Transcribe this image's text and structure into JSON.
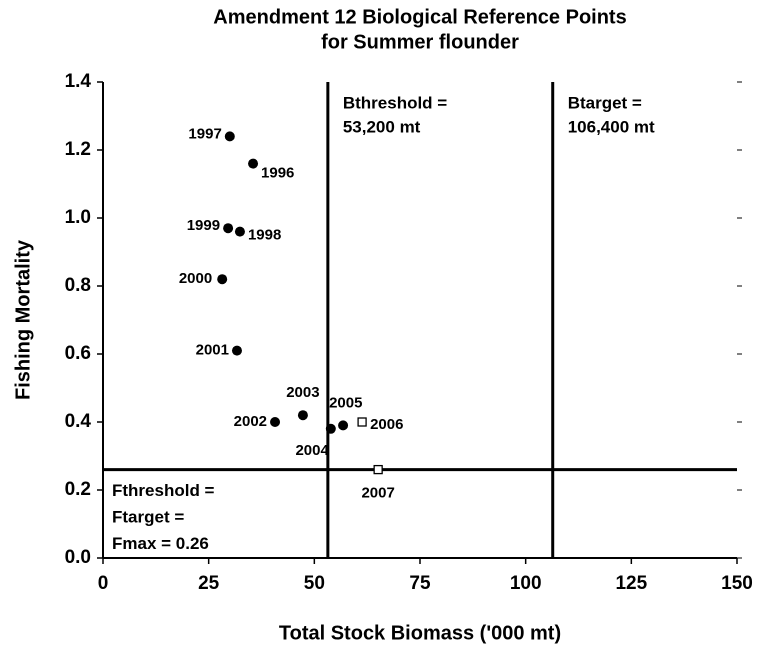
{
  "chart_data": {
    "type": "scatter",
    "title": [
      "Amendment 12 Biological Reference Points",
      "for Summer flounder"
    ],
    "x_label": "Total Stock Biomass ('000 mt)",
    "y_label": "Fishing Mortality",
    "xlim": [
      0,
      150
    ],
    "ylim": [
      0,
      1.4
    ],
    "xticks": [
      0,
      25,
      50,
      75,
      100,
      125,
      150
    ],
    "yticks": [
      {
        "value": 0,
        "label": "0.0"
      },
      0.2,
      0.4,
      0.6,
      0.8,
      {
        "value": 1,
        "label": "1.0"
      },
      1.2,
      1.4
    ],
    "series": [
      {
        "marker": "circle",
        "color": "#000000",
        "x": [
          35.5,
          30.0,
          32.4,
          29.6,
          28.2,
          31.7,
          40.7,
          47.3,
          53.9,
          56.8
        ],
        "values": [
          1.16,
          1.24,
          0.96,
          0.97,
          0.82,
          0.61,
          0.4,
          0.42,
          0.38,
          0.39
        ],
        "labels": [
          "1996",
          "1997",
          "1998",
          "1999",
          "2000",
          "2001",
          "2002",
          "2003",
          "2004",
          "2005"
        ]
      },
      {
        "marker": "square-open",
        "color": "#000000",
        "x": [
          61.3,
          65.1
        ],
        "values": [
          0.4,
          0.26
        ],
        "labels": [
          "2006",
          "2007"
        ]
      }
    ],
    "reference_lines": [
      {
        "axis": "x",
        "value": 53.2,
        "label": [
          "Bthreshold =",
          "53,200 mt"
        ]
      },
      {
        "axis": "x",
        "value": 106.4,
        "label": [
          "Btarget =",
          "106,400 mt"
        ]
      },
      {
        "axis": "y",
        "value": 0.26,
        "label": [
          "Fthreshold =",
          "Ftarget =",
          "Fmax = 0.26"
        ]
      }
    ]
  }
}
